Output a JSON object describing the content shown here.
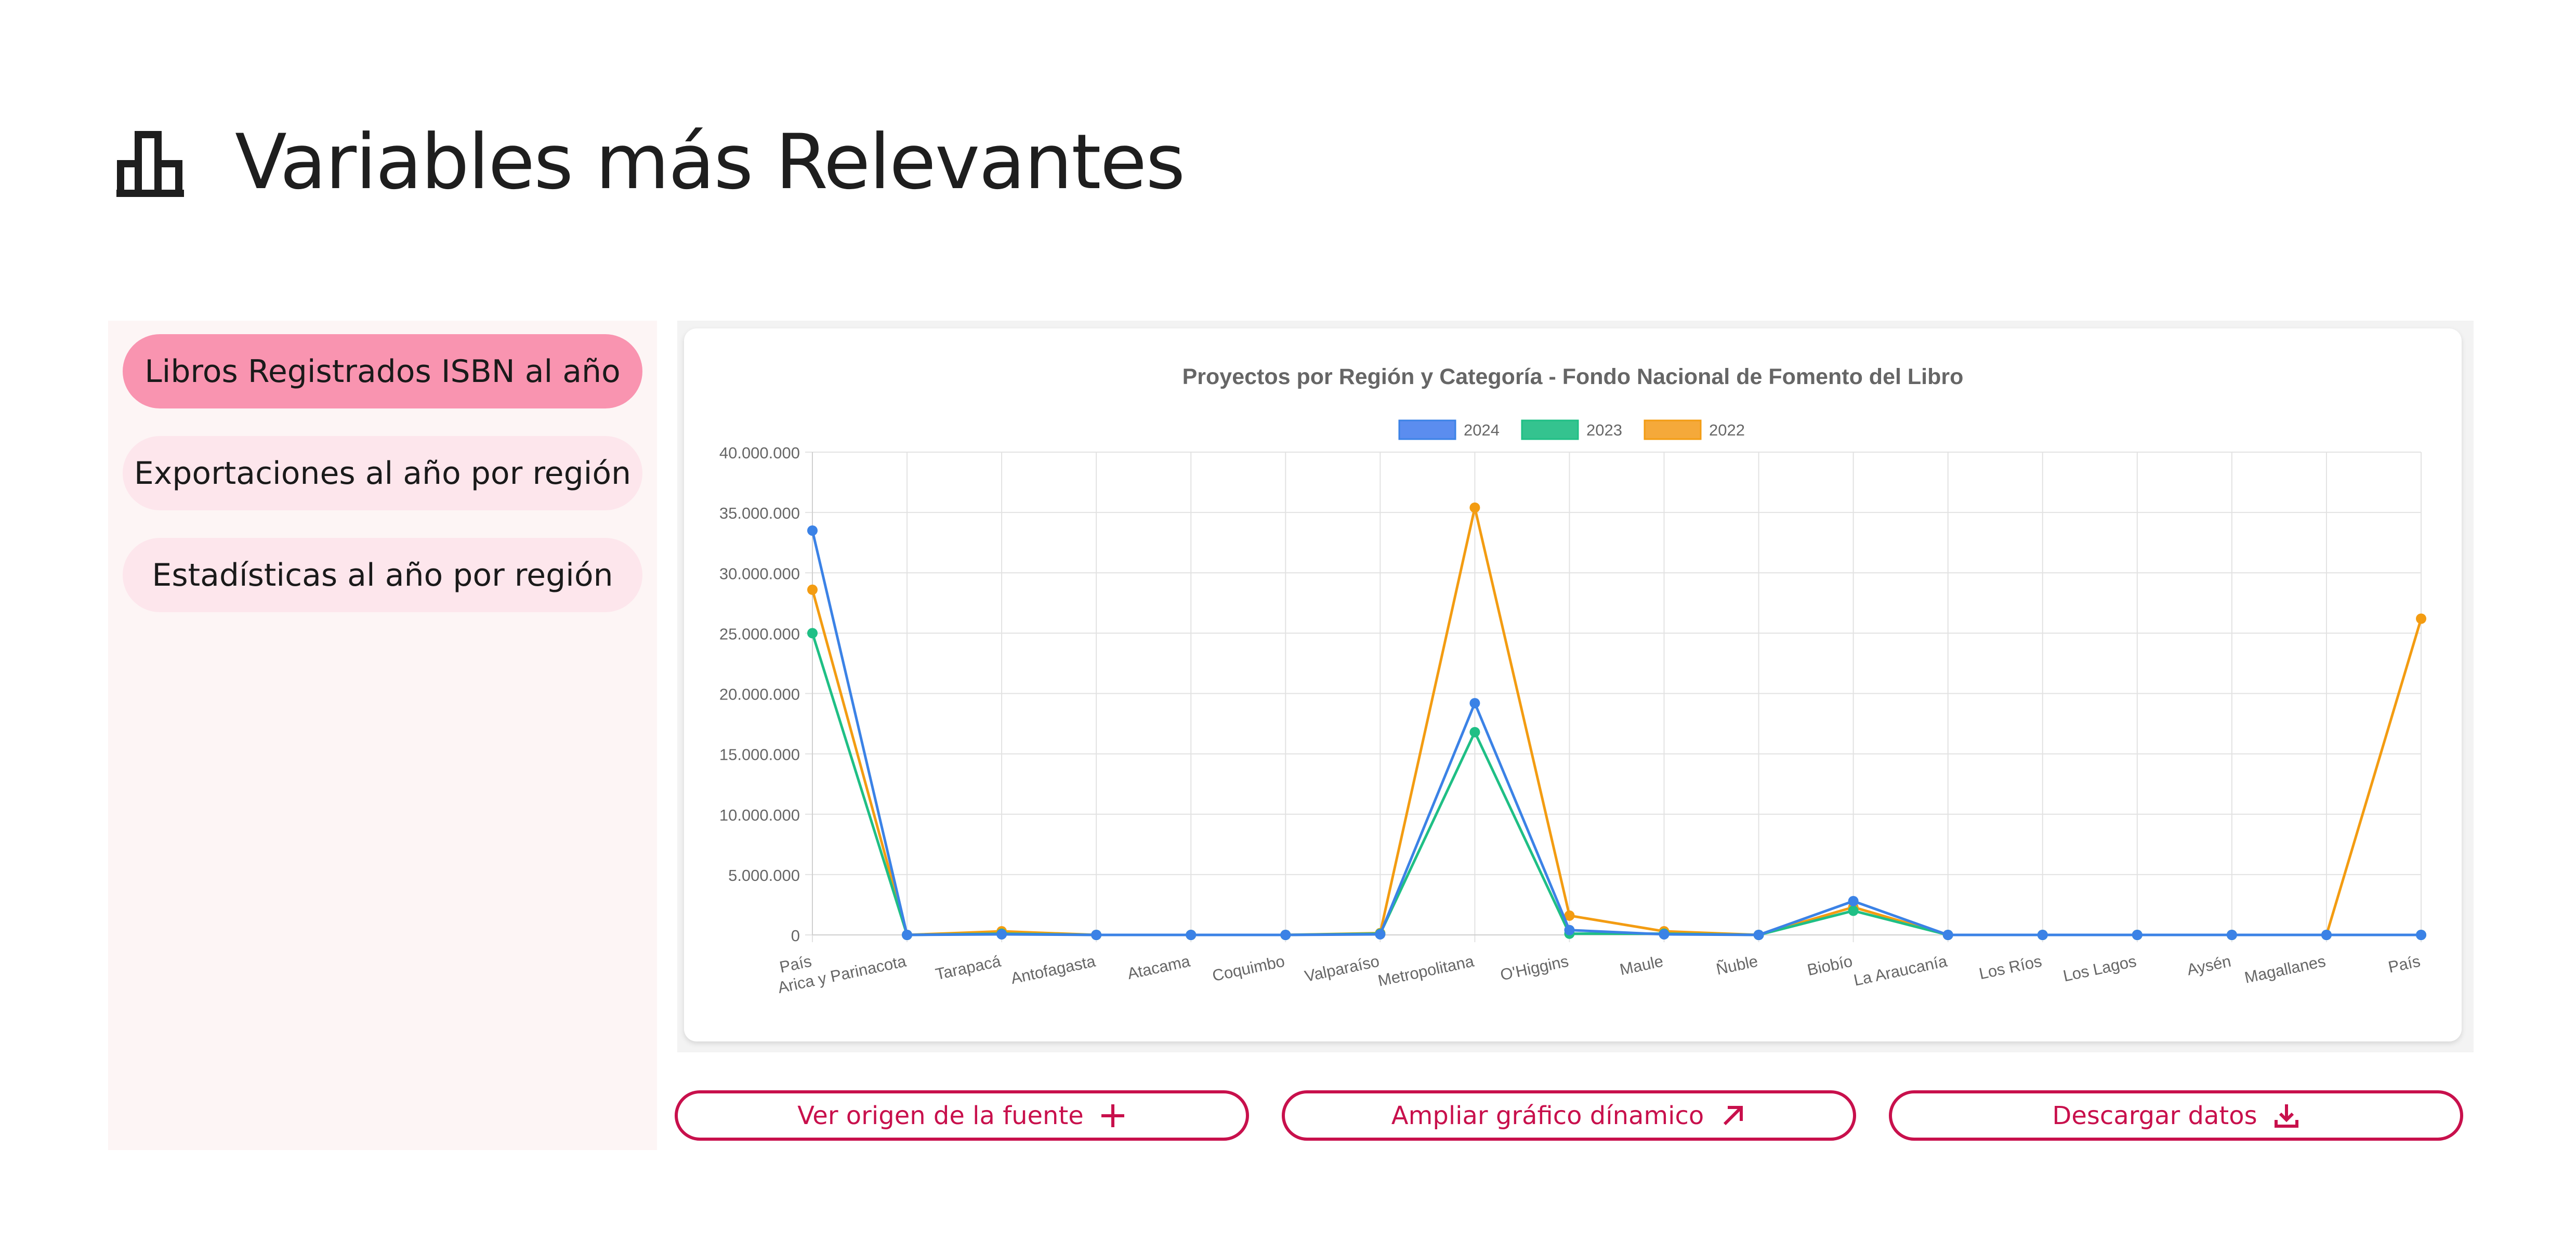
{
  "page": {
    "title": "Variables más Relevantes",
    "title_icon": "bar-chart-icon"
  },
  "sidebar": {
    "items": [
      {
        "label": "Libros Registrados ISBN al año",
        "active": true
      },
      {
        "label": "Exportaciones al año por región",
        "active": false
      },
      {
        "label": "Estadísticas al año por región",
        "active": false
      }
    ]
  },
  "actions": {
    "source": {
      "label": "Ver origen de la fuente",
      "icon": "plus-icon"
    },
    "expand": {
      "label": "Ampliar gráfico dínamico",
      "icon": "arrow-up-right-icon"
    },
    "download": {
      "label": "Descargar datos",
      "icon": "download-icon"
    }
  },
  "colors": {
    "accent": "#c8104c",
    "sidebar_active": "#f994b0",
    "sidebar_inactive": "#fde6ec"
  },
  "chart_data": {
    "type": "line",
    "title": "Proyectos por Región y Categoría - Fondo Nacional de Fomento del Libro",
    "xlabel": "",
    "ylabel": "",
    "categories": [
      "País",
      "Arica y Parinacota",
      "Tarapacá",
      "Antofagasta",
      "Atacama",
      "Coquimbo",
      "Valparaíso",
      "Metropolitana",
      "O'Higgins",
      "Maule",
      "Ñuble",
      "Biobío",
      "La Araucanía",
      "Los Ríos",
      "Los Lagos",
      "Aysén",
      "Magallanes",
      "País"
    ],
    "ylim": [
      0,
      40000000
    ],
    "yticks": [
      0,
      5000000,
      10000000,
      15000000,
      20000000,
      25000000,
      30000000,
      35000000,
      40000000
    ],
    "ytick_labels": [
      "0",
      "5.000.000",
      "10.000.000",
      "15.000.000",
      "20.000.000",
      "25.000.000",
      "30.000.000",
      "35.000.000",
      "40.000.000"
    ],
    "grid": true,
    "legend_position": "top",
    "series": [
      {
        "name": "2024",
        "color": "#3b82e6",
        "fill": "#5b8def",
        "values": [
          33500000,
          0,
          50000,
          0,
          0,
          0,
          50000,
          19200000,
          400000,
          50000,
          0,
          2800000,
          0,
          0,
          0,
          0,
          0,
          0
        ]
      },
      {
        "name": "2023",
        "color": "#1fbf85",
        "fill": "#34c38f",
        "values": [
          25000000,
          0,
          100000,
          0,
          0,
          0,
          100000,
          16800000,
          100000,
          100000,
          0,
          2000000,
          0,
          0,
          0,
          0,
          0,
          0
        ]
      },
      {
        "name": "2022",
        "color": "#f39c12",
        "fill": "#f5a93a",
        "values": [
          28600000,
          0,
          300000,
          0,
          0,
          0,
          150000,
          35400000,
          1600000,
          300000,
          0,
          2300000,
          0,
          0,
          0,
          0,
          0,
          26200000
        ]
      }
    ]
  }
}
